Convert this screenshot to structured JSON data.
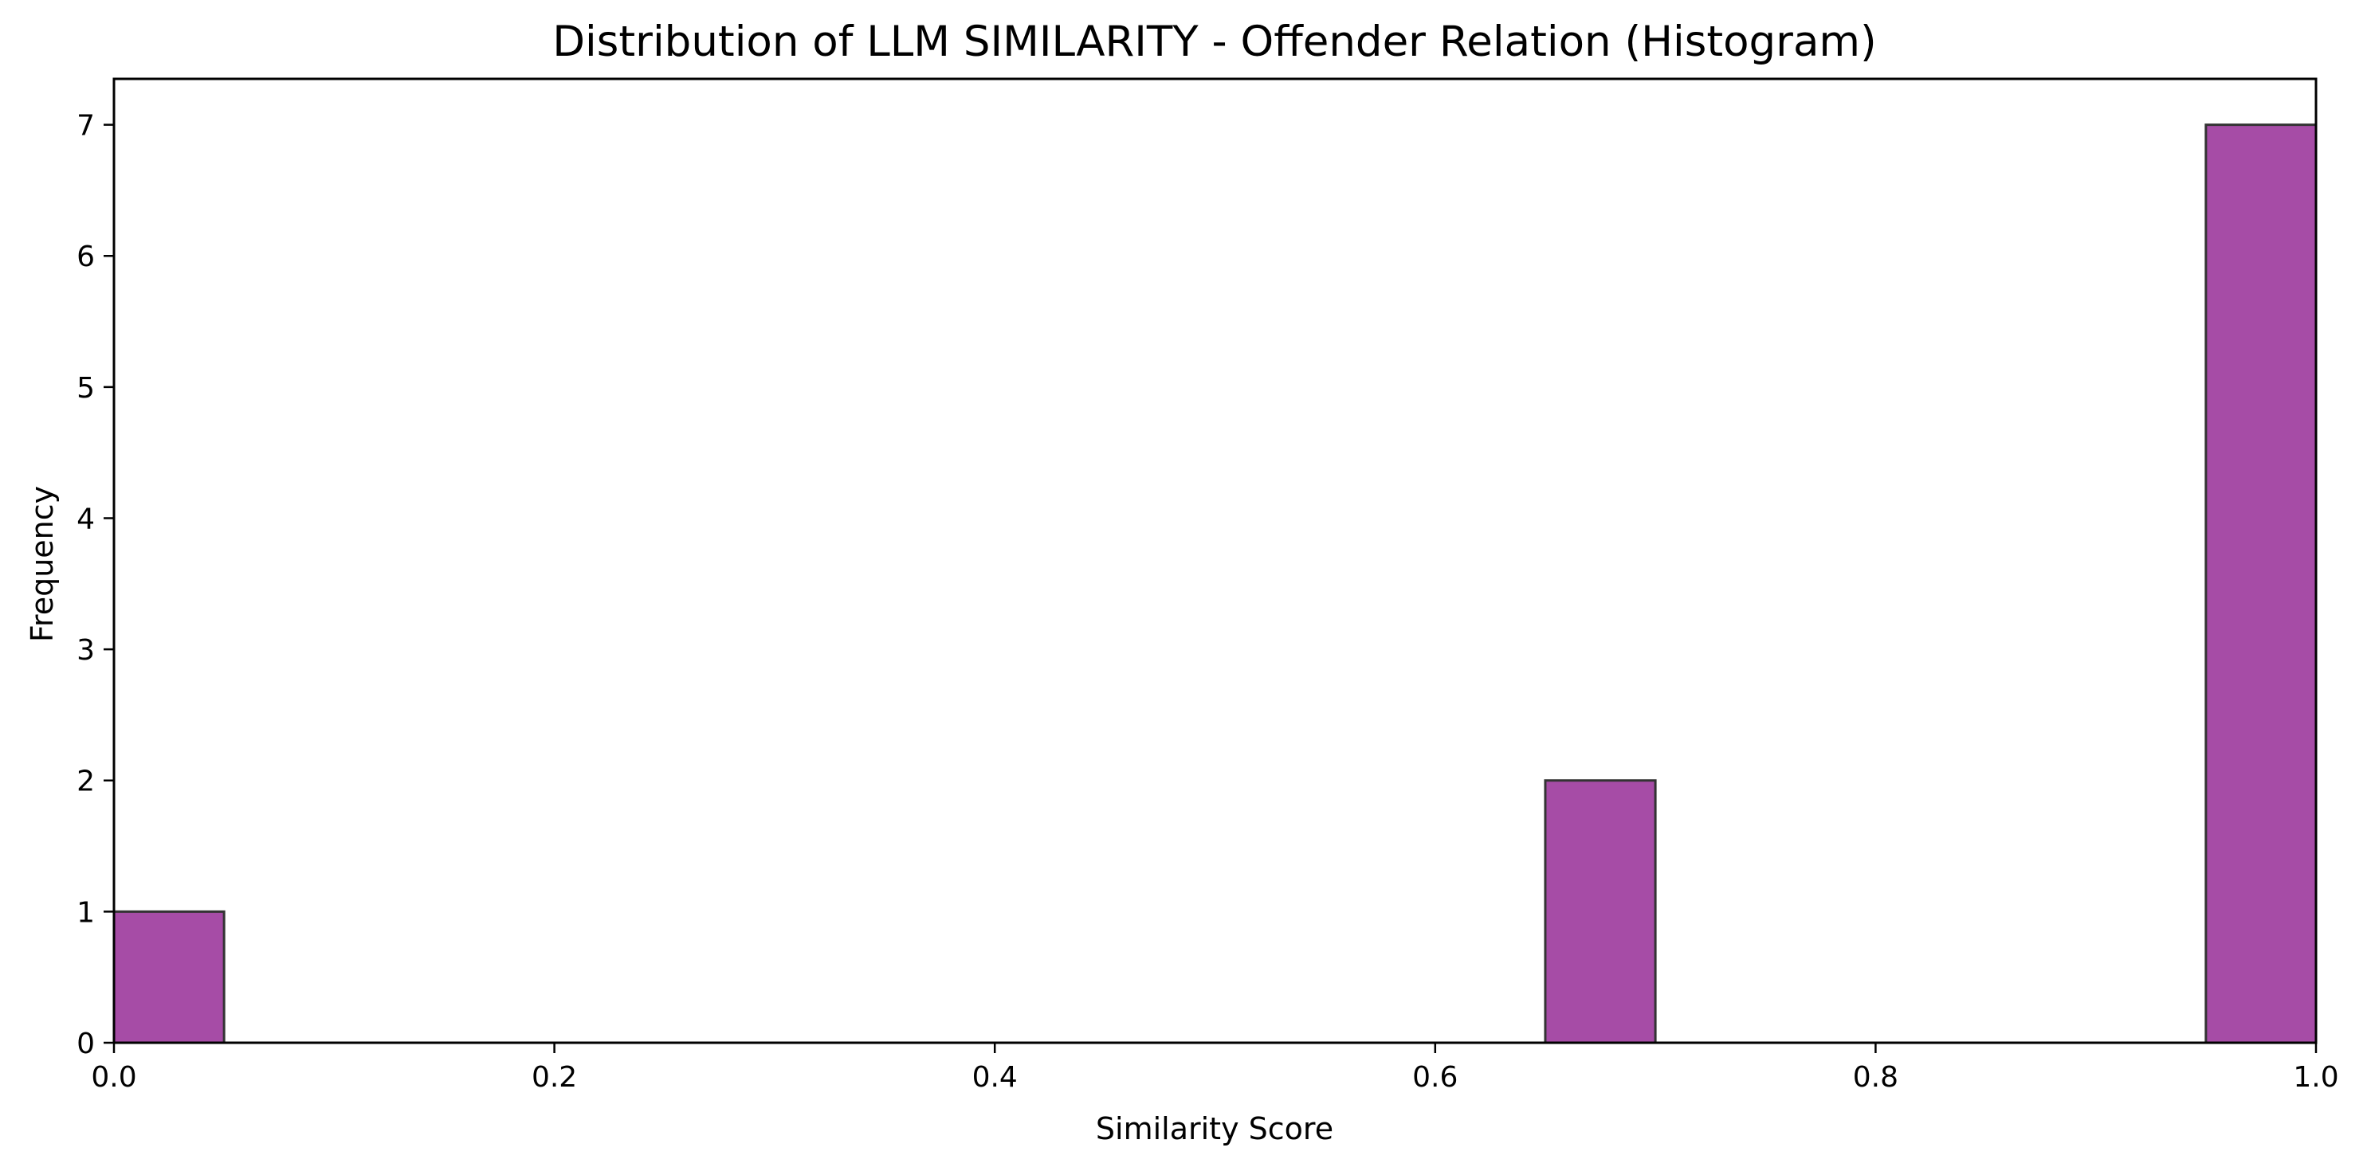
{
  "chart_data": {
    "type": "bar",
    "title": "Distribution of LLM SIMILARITY - Offender Relation (Histogram)",
    "xlabel": "Similarity Score",
    "ylabel": "Frequency",
    "xlim": [
      0.0,
      1.0
    ],
    "ylim": [
      0,
      7.35
    ],
    "xticks": [
      0.0,
      0.2,
      0.4,
      0.6,
      0.8,
      1.0
    ],
    "xtick_labels": [
      "0.0",
      "0.2",
      "0.4",
      "0.6",
      "0.8",
      "1.0"
    ],
    "yticks": [
      0,
      1,
      2,
      3,
      4,
      5,
      6,
      7
    ],
    "ytick_labels": [
      "0",
      "1",
      "2",
      "3",
      "4",
      "5",
      "6",
      "7"
    ],
    "bins": [
      {
        "start": 0.0,
        "end": 0.05,
        "count": 1
      },
      {
        "start": 0.65,
        "end": 0.7,
        "count": 2
      },
      {
        "start": 0.95,
        "end": 1.0,
        "count": 7
      }
    ],
    "bar_color": "#a64ca6",
    "bar_edge_color": "#333333",
    "grid": false,
    "legend": "none"
  }
}
